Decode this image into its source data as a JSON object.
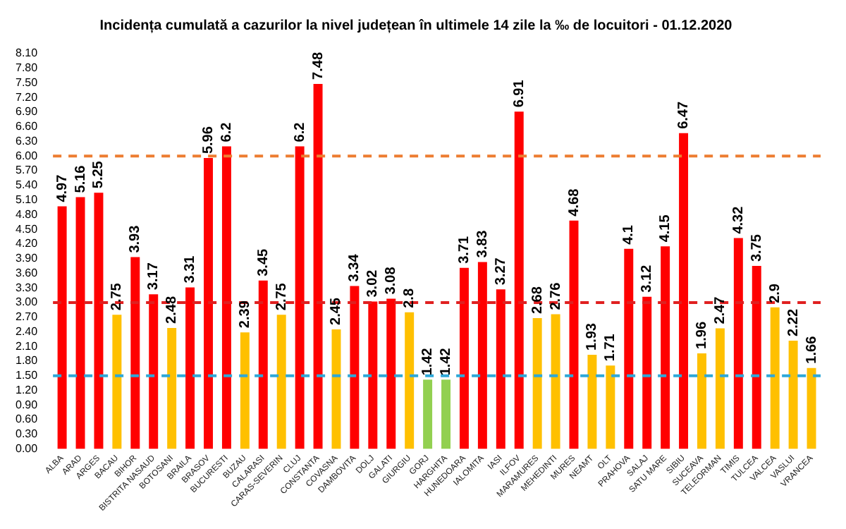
{
  "chart_data": {
    "type": "bar",
    "title": "Incidența cumulată a cazurilor la nivel județean în ultimele 14 zile la ‰ de locuitori - 01.12.2020",
    "categories": [
      "ALBA",
      "ARAD",
      "ARGES",
      "BACAU",
      "BIHOR",
      "BISTRITA NASAUD",
      "BOTOSANI",
      "BRAILA",
      "BRASOV",
      "BUCURESTI",
      "BUZAU",
      "CALARASI",
      "CARAS-SEVERIN",
      "CLUJ",
      "CONSTANTA",
      "COVASNA",
      "DAMBOVITA",
      "DOLJ",
      "GALATI",
      "GIURGIU",
      "GORJ",
      "HARGHITA",
      "HUNEDOARA",
      "IALOMITA",
      "IASI",
      "ILFOV",
      "MARAMURES",
      "MEHEDINTI",
      "MURES",
      "NEAMT",
      "OLT",
      "PRAHOVA",
      "SALAJ",
      "SATU MARE",
      "SIBIU",
      "SUCEAVA",
      "TELEORMAN",
      "TIMIS",
      "TULCEA",
      "VALCEA",
      "VASLUI",
      "VRANCEA"
    ],
    "values": [
      4.97,
      5.16,
      5.25,
      2.75,
      3.93,
      3.17,
      2.48,
      3.31,
      5.96,
      6.2,
      2.39,
      3.45,
      2.75,
      6.2,
      7.48,
      2.45,
      3.34,
      3.02,
      3.08,
      2.8,
      1.42,
      1.42,
      3.71,
      3.83,
      3.27,
      6.91,
      2.68,
      2.76,
      4.68,
      1.93,
      1.71,
      4.1,
      3.12,
      4.15,
      6.47,
      1.96,
      2.47,
      4.32,
      3.75,
      2.9,
      2.22,
      1.66
    ],
    "colors": [
      "#ff0000",
      "#ff0000",
      "#ff0000",
      "#ffc000",
      "#ff0000",
      "#ff0000",
      "#ffc000",
      "#ff0000",
      "#ff0000",
      "#ff0000",
      "#ffc000",
      "#ff0000",
      "#ffc000",
      "#ff0000",
      "#ff0000",
      "#ffc000",
      "#ff0000",
      "#ff0000",
      "#ff0000",
      "#ffc000",
      "#92d050",
      "#92d050",
      "#ff0000",
      "#ff0000",
      "#ff0000",
      "#ff0000",
      "#ffc000",
      "#ffc000",
      "#ff0000",
      "#ffc000",
      "#ffc000",
      "#ff0000",
      "#ff0000",
      "#ff0000",
      "#ff0000",
      "#ffc000",
      "#ffc000",
      "#ff0000",
      "#ff0000",
      "#ffc000",
      "#ffc000",
      "#ffc000"
    ],
    "data_labels": true,
    "ylim": [
      0,
      8.1
    ],
    "yticks": [
      {
        "value": 0,
        "label": "0.00"
      },
      {
        "value": 0.3,
        "label": "0.30"
      },
      {
        "value": 0.6,
        "label": "0.60"
      },
      {
        "value": 0.9,
        "label": "0.90"
      },
      {
        "value": 1.2,
        "label": "1.20"
      },
      {
        "value": 1.5,
        "label": "1.50"
      },
      {
        "value": 1.8,
        "label": "1.80"
      },
      {
        "value": 2.1,
        "label": "2.10"
      },
      {
        "value": 2.4,
        "label": "2.40"
      },
      {
        "value": 2.7,
        "label": "2.70"
      },
      {
        "value": 3,
        "label": "3.00"
      },
      {
        "value": 3.3,
        "label": "3.30"
      },
      {
        "value": 3.6,
        "label": "3.60"
      },
      {
        "value": 3.9,
        "label": "3.90"
      },
      {
        "value": 4.2,
        "label": "4.20"
      },
      {
        "value": 4.5,
        "label": "4.50"
      },
      {
        "value": 4.8,
        "label": "4.80"
      },
      {
        "value": 5.1,
        "label": "5.10"
      },
      {
        "value": 5.4,
        "label": "5.40"
      },
      {
        "value": 5.7,
        "label": "5.70"
      },
      {
        "value": 6,
        "label": "6.00"
      },
      {
        "value": 6.3,
        "label": "6.30"
      },
      {
        "value": 6.6,
        "label": "6.60"
      },
      {
        "value": 6.9,
        "label": "6.90"
      },
      {
        "value": 7.2,
        "label": "7.20"
      },
      {
        "value": 7.5,
        "label": "7.50"
      },
      {
        "value": 7.8,
        "label": "7.80"
      },
      {
        "value": 8.1,
        "label": "8.10"
      }
    ],
    "ref_lines": [
      {
        "axis": "y",
        "value": 6,
        "color": "#ed7d31",
        "line_style": "dashed"
      },
      {
        "axis": "y",
        "value": 3,
        "color": "#e02020",
        "line_style": "dashed"
      },
      {
        "axis": "y",
        "value": 1.5,
        "color": "#2ea8d8",
        "line_style": "dashed"
      }
    ],
    "grid": false,
    "legend": false
  }
}
